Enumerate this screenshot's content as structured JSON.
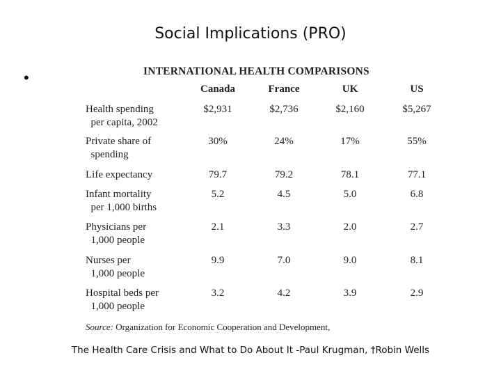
{
  "slide": {
    "title": "Social Implications (PRO)",
    "bullet": "•",
    "attribution": "The Health Care Crisis and What to Do About It -Paul Krugman, †Robin Wells"
  },
  "table": {
    "title": "INTERNATIONAL HEALTH COMPARISONS",
    "columns": [
      "Canada",
      "France",
      "UK",
      "US"
    ],
    "rows": [
      {
        "label": "Health spending\n  per capita, 2002",
        "values": [
          "$2,931",
          "$2,736",
          "$2,160",
          "$5,267"
        ]
      },
      {
        "label": "Private share of\n  spending",
        "values": [
          "30%",
          "24%",
          "17%",
          "55%"
        ]
      },
      {
        "label": "Life expectancy",
        "values": [
          "79.7",
          "79.2",
          "78.1",
          "77.1"
        ]
      },
      {
        "label": "Infant mortality\n  per 1,000 births",
        "values": [
          "5.2",
          "4.5",
          "5.0",
          "6.8"
        ]
      },
      {
        "label": "Physicians per\n  1,000 people",
        "values": [
          "2.1",
          "3.3",
          "2.0",
          "2.7"
        ]
      },
      {
        "label": "Nurses per\n  1,000 people",
        "values": [
          "9.9",
          "7.0",
          "9.0",
          "8.1"
        ]
      },
      {
        "label": "Hospital beds per\n  1,000 people",
        "values": [
          "3.2",
          "4.2",
          "3.9",
          "2.9"
        ]
      }
    ],
    "source_label": "Source:",
    "source_text": "Organization for Economic Cooperation and Development,"
  }
}
